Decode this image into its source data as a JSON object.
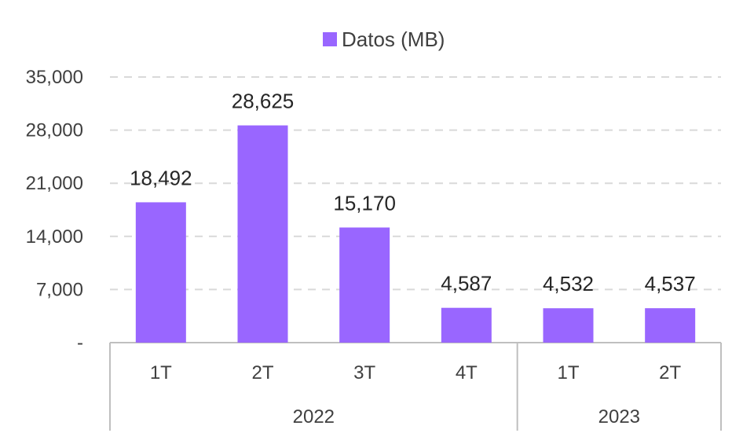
{
  "chart_data": {
    "type": "bar",
    "groups": [
      {
        "label": "2022",
        "categories": [
          "1T",
          "2T",
          "3T",
          "4T"
        ]
      },
      {
        "label": "2023",
        "categories": [
          "1T",
          "2T"
        ]
      }
    ],
    "series": [
      {
        "name": "Datos (MB)",
        "values": [
          18492,
          28625,
          15170,
          4587,
          4532,
          4537
        ],
        "data_labels": [
          "18,492",
          "28,625",
          "15,170",
          "4,587",
          "4,532",
          "4,537"
        ],
        "color": "#9966FF"
      }
    ],
    "y_ticks": [
      {
        "value": 0,
        "label": "-"
      },
      {
        "value": 7000,
        "label": "7,000"
      },
      {
        "value": 14000,
        "label": "14,000"
      },
      {
        "value": 21000,
        "label": "21,000"
      },
      {
        "value": 28000,
        "label": "28,000"
      },
      {
        "value": 35000,
        "label": "35,000"
      }
    ],
    "ylim": [
      0,
      35000
    ],
    "grid": true,
    "legend_position": "top"
  }
}
